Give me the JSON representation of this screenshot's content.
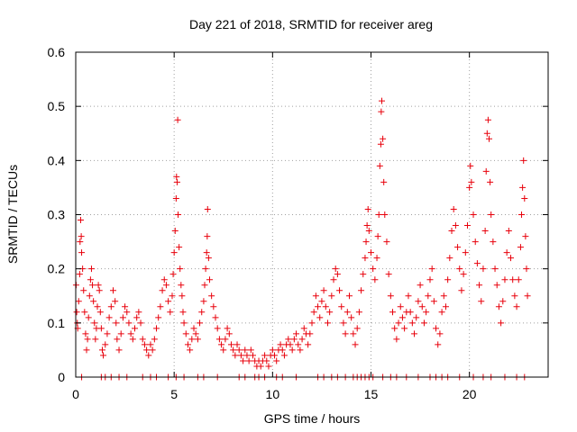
{
  "chart_data": {
    "type": "scatter",
    "title": "Day 221 of 2018, SRMTID for receiver areg",
    "xlabel": "GPS time / hours",
    "ylabel": "SRMTID / TECUs",
    "xlim": [
      0,
      24
    ],
    "ylim": [
      0,
      0.6
    ],
    "xticks": [
      0,
      5,
      10,
      15,
      20
    ],
    "yticks": [
      0,
      0.1,
      0.2,
      0.3,
      0.4,
      0.5,
      0.6
    ],
    "xtick_labels": [
      "0",
      "5",
      "10",
      "15",
      "20"
    ],
    "ytick_labels": [
      "0",
      "0.1",
      "0.2",
      "0.3",
      "0.4",
      "0.5",
      "0.6"
    ],
    "grid": true,
    "marker": "plus",
    "color": "#e8000b",
    "series": [
      {
        "name": "SRMTID",
        "points": [
          [
            0.02,
            0.17
          ],
          [
            0.05,
            0.12
          ],
          [
            0.08,
            0.1
          ],
          [
            0.1,
            0.09
          ],
          [
            0.15,
            0.14
          ],
          [
            0.2,
            0.19
          ],
          [
            0.22,
            0.25
          ],
          [
            0.25,
            0.29
          ],
          [
            0.28,
            0.26
          ],
          [
            0.3,
            0.23
          ],
          [
            0.35,
            0.2
          ],
          [
            0.4,
            0.16
          ],
          [
            0.45,
            0.12
          ],
          [
            0.5,
            0.08
          ],
          [
            0.55,
            0.05
          ],
          [
            0.6,
            0.07
          ],
          [
            0.65,
            0.11
          ],
          [
            0.7,
            0.15
          ],
          [
            0.75,
            0.18
          ],
          [
            0.8,
            0.2
          ],
          [
            0.85,
            0.17
          ],
          [
            0.9,
            0.14
          ],
          [
            0.95,
            0.1
          ],
          [
            1.0,
            0.07
          ],
          [
            1.05,
            0.09
          ],
          [
            1.1,
            0.13
          ],
          [
            1.15,
            0.17
          ],
          [
            1.2,
            0.16
          ],
          [
            1.25,
            0.12
          ],
          [
            1.3,
            0.09
          ],
          [
            1.35,
            0.05
          ],
          [
            1.4,
            0.04
          ],
          [
            1.5,
            0.06
          ],
          [
            1.6,
            0.08
          ],
          [
            1.7,
            0.11
          ],
          [
            1.8,
            0.13
          ],
          [
            1.9,
            0.16
          ],
          [
            2.0,
            0.14
          ],
          [
            2.05,
            0.1
          ],
          [
            2.1,
            0.07
          ],
          [
            2.2,
            0.05
          ],
          [
            2.3,
            0.08
          ],
          [
            2.4,
            0.11
          ],
          [
            2.5,
            0.13
          ],
          [
            2.6,
            0.12
          ],
          [
            2.7,
            0.1
          ],
          [
            2.8,
            0.08
          ],
          [
            2.9,
            0.07
          ],
          [
            3.0,
            0.09
          ],
          [
            3.1,
            0.11
          ],
          [
            3.2,
            0.12
          ],
          [
            3.3,
            0.1
          ],
          [
            3.4,
            0.07
          ],
          [
            3.5,
            0.06
          ],
          [
            3.6,
            0.05
          ],
          [
            3.7,
            0.04
          ],
          [
            3.8,
            0.06
          ],
          [
            3.9,
            0.05
          ],
          [
            4.0,
            0.07
          ],
          [
            4.1,
            0.09
          ],
          [
            4.2,
            0.11
          ],
          [
            4.3,
            0.13
          ],
          [
            4.4,
            0.16
          ],
          [
            4.5,
            0.18
          ],
          [
            4.6,
            0.17
          ],
          [
            4.7,
            0.14
          ],
          [
            4.8,
            0.12
          ],
          [
            4.9,
            0.15
          ],
          [
            4.95,
            0.19
          ],
          [
            5.0,
            0.23
          ],
          [
            5.05,
            0.27
          ],
          [
            5.1,
            0.33
          ],
          [
            5.12,
            0.37
          ],
          [
            5.15,
            0.36
          ],
          [
            5.18,
            0.475
          ],
          [
            5.2,
            0.3
          ],
          [
            5.25,
            0.24
          ],
          [
            5.3,
            0.2
          ],
          [
            5.35,
            0.17
          ],
          [
            5.4,
            0.15
          ],
          [
            5.45,
            0.12
          ],
          [
            5.5,
            0.1
          ],
          [
            5.6,
            0.08
          ],
          [
            5.7,
            0.06
          ],
          [
            5.8,
            0.05
          ],
          [
            5.9,
            0.07
          ],
          [
            6.0,
            0.09
          ],
          [
            6.1,
            0.08
          ],
          [
            6.2,
            0.07
          ],
          [
            6.3,
            0.1
          ],
          [
            6.4,
            0.12
          ],
          [
            6.5,
            0.14
          ],
          [
            6.55,
            0.17
          ],
          [
            6.6,
            0.2
          ],
          [
            6.65,
            0.23
          ],
          [
            6.68,
            0.26
          ],
          [
            6.7,
            0.31
          ],
          [
            6.75,
            0.22
          ],
          [
            6.8,
            0.18
          ],
          [
            6.9,
            0.15
          ],
          [
            7.0,
            0.13
          ],
          [
            7.1,
            0.11
          ],
          [
            7.2,
            0.09
          ],
          [
            7.3,
            0.07
          ],
          [
            7.4,
            0.06
          ],
          [
            7.5,
            0.05
          ],
          [
            7.6,
            0.07
          ],
          [
            7.7,
            0.09
          ],
          [
            7.8,
            0.08
          ],
          [
            7.9,
            0.06
          ],
          [
            8.0,
            0.05
          ],
          [
            8.1,
            0.04
          ],
          [
            8.2,
            0.06
          ],
          [
            8.3,
            0.05
          ],
          [
            8.4,
            0.04
          ],
          [
            8.5,
            0.03
          ],
          [
            8.6,
            0.05
          ],
          [
            8.7,
            0.04
          ],
          [
            8.8,
            0.03
          ],
          [
            8.9,
            0.05
          ],
          [
            9.0,
            0.04
          ],
          [
            9.1,
            0.03
          ],
          [
            9.2,
            0.02
          ],
          [
            9.3,
            0.03
          ],
          [
            9.4,
            0.02
          ],
          [
            9.5,
            0.03
          ],
          [
            9.6,
            0.04
          ],
          [
            9.7,
            0.03
          ],
          [
            9.8,
            0.02
          ],
          [
            9.9,
            0.04
          ],
          [
            10.0,
            0.05
          ],
          [
            10.1,
            0.04
          ],
          [
            10.2,
            0.03
          ],
          [
            10.3,
            0.05
          ],
          [
            10.4,
            0.06
          ],
          [
            10.5,
            0.05
          ],
          [
            10.6,
            0.04
          ],
          [
            10.7,
            0.06
          ],
          [
            10.8,
            0.07
          ],
          [
            10.9,
            0.06
          ],
          [
            11.0,
            0.05
          ],
          [
            11.1,
            0.07
          ],
          [
            11.2,
            0.08
          ],
          [
            11.3,
            0.06
          ],
          [
            11.4,
            0.05
          ],
          [
            11.5,
            0.07
          ],
          [
            11.6,
            0.09
          ],
          [
            11.7,
            0.08
          ],
          [
            11.8,
            0.06
          ],
          [
            11.9,
            0.08
          ],
          [
            12.0,
            0.1
          ],
          [
            12.1,
            0.12
          ],
          [
            12.2,
            0.15
          ],
          [
            12.3,
            0.13
          ],
          [
            12.4,
            0.11
          ],
          [
            12.5,
            0.14
          ],
          [
            12.6,
            0.16
          ],
          [
            12.7,
            0.13
          ],
          [
            12.8,
            0.1
          ],
          [
            12.9,
            0.12
          ],
          [
            13.0,
            0.15
          ],
          [
            13.1,
            0.18
          ],
          [
            13.2,
            0.2
          ],
          [
            13.3,
            0.19
          ],
          [
            13.4,
            0.16
          ],
          [
            13.5,
            0.13
          ],
          [
            13.6,
            0.1
          ],
          [
            13.7,
            0.08
          ],
          [
            13.8,
            0.12
          ],
          [
            13.9,
            0.15
          ],
          [
            14.0,
            0.11
          ],
          [
            14.1,
            0.08
          ],
          [
            14.2,
            0.06
          ],
          [
            14.3,
            0.09
          ],
          [
            14.4,
            0.12
          ],
          [
            14.5,
            0.16
          ],
          [
            14.6,
            0.19
          ],
          [
            14.7,
            0.22
          ],
          [
            14.75,
            0.25
          ],
          [
            14.8,
            0.28
          ],
          [
            14.85,
            0.31
          ],
          [
            14.9,
            0.27
          ],
          [
            15.0,
            0.23
          ],
          [
            15.1,
            0.2
          ],
          [
            15.2,
            0.18
          ],
          [
            15.3,
            0.22
          ],
          [
            15.35,
            0.26
          ],
          [
            15.4,
            0.3
          ],
          [
            15.45,
            0.39
          ],
          [
            15.5,
            0.43
          ],
          [
            15.52,
            0.49
          ],
          [
            15.55,
            0.51
          ],
          [
            15.6,
            0.44
          ],
          [
            15.65,
            0.36
          ],
          [
            15.7,
            0.3
          ],
          [
            15.8,
            0.25
          ],
          [
            15.9,
            0.19
          ],
          [
            16.0,
            0.15
          ],
          [
            16.1,
            0.12
          ],
          [
            16.2,
            0.09
          ],
          [
            16.3,
            0.07
          ],
          [
            16.4,
            0.1
          ],
          [
            16.5,
            0.13
          ],
          [
            16.6,
            0.11
          ],
          [
            16.7,
            0.09
          ],
          [
            16.8,
            0.12
          ],
          [
            16.9,
            0.15
          ],
          [
            17.0,
            0.12
          ],
          [
            17.1,
            0.1
          ],
          [
            17.2,
            0.08
          ],
          [
            17.3,
            0.11
          ],
          [
            17.4,
            0.14
          ],
          [
            17.5,
            0.17
          ],
          [
            17.6,
            0.13
          ],
          [
            17.7,
            0.1
          ],
          [
            17.8,
            0.12
          ],
          [
            17.9,
            0.15
          ],
          [
            18.0,
            0.18
          ],
          [
            18.1,
            0.2
          ],
          [
            18.2,
            0.14
          ],
          [
            18.3,
            0.09
          ],
          [
            18.4,
            0.06
          ],
          [
            18.5,
            0.08
          ],
          [
            18.6,
            0.12
          ],
          [
            18.7,
            0.15
          ],
          [
            18.8,
            0.13
          ],
          [
            18.9,
            0.18
          ],
          [
            19.0,
            0.22
          ],
          [
            19.1,
            0.27
          ],
          [
            19.2,
            0.31
          ],
          [
            19.3,
            0.28
          ],
          [
            19.4,
            0.24
          ],
          [
            19.5,
            0.2
          ],
          [
            19.6,
            0.16
          ],
          [
            19.7,
            0.19
          ],
          [
            19.8,
            0.23
          ],
          [
            19.9,
            0.28
          ],
          [
            20.0,
            0.35
          ],
          [
            20.05,
            0.39
          ],
          [
            20.1,
            0.36
          ],
          [
            20.2,
            0.3
          ],
          [
            20.3,
            0.25
          ],
          [
            20.4,
            0.21
          ],
          [
            20.5,
            0.17
          ],
          [
            20.6,
            0.14
          ],
          [
            20.7,
            0.2
          ],
          [
            20.8,
            0.27
          ],
          [
            20.85,
            0.38
          ],
          [
            20.9,
            0.45
          ],
          [
            20.95,
            0.475
          ],
          [
            21.0,
            0.44
          ],
          [
            21.05,
            0.36
          ],
          [
            21.1,
            0.3
          ],
          [
            21.2,
            0.25
          ],
          [
            21.3,
            0.2
          ],
          [
            21.4,
            0.17
          ],
          [
            21.5,
            0.13
          ],
          [
            21.6,
            0.1
          ],
          [
            21.7,
            0.14
          ],
          [
            21.8,
            0.18
          ],
          [
            21.9,
            0.23
          ],
          [
            22.0,
            0.27
          ],
          [
            22.1,
            0.22
          ],
          [
            22.2,
            0.18
          ],
          [
            22.3,
            0.15
          ],
          [
            22.4,
            0.13
          ],
          [
            22.5,
            0.18
          ],
          [
            22.6,
            0.24
          ],
          [
            22.65,
            0.3
          ],
          [
            22.7,
            0.35
          ],
          [
            22.75,
            0.4
          ],
          [
            22.8,
            0.33
          ],
          [
            22.85,
            0.26
          ],
          [
            22.9,
            0.2
          ],
          [
            22.95,
            0.15
          ],
          [
            0.3,
            0
          ],
          [
            1.3,
            0
          ],
          [
            1.5,
            0
          ],
          [
            1.8,
            0
          ],
          [
            2.2,
            0
          ],
          [
            2.6,
            0
          ],
          [
            3.4,
            0
          ],
          [
            3.8,
            0
          ],
          [
            4.1,
            0
          ],
          [
            4.7,
            0
          ],
          [
            5.1,
            0
          ],
          [
            5.5,
            0
          ],
          [
            6.2,
            0
          ],
          [
            6.5,
            0
          ],
          [
            7.2,
            0
          ],
          [
            8.3,
            0
          ],
          [
            8.6,
            0
          ],
          [
            9.1,
            0
          ],
          [
            9.3,
            0
          ],
          [
            9.6,
            0
          ],
          [
            10.2,
            0
          ],
          [
            10.5,
            0
          ],
          [
            11.2,
            0
          ],
          [
            12.3,
            0
          ],
          [
            12.6,
            0
          ],
          [
            13.0,
            0
          ],
          [
            13.3,
            0
          ],
          [
            13.7,
            0
          ],
          [
            14.1,
            0
          ],
          [
            14.3,
            0
          ],
          [
            14.5,
            0
          ],
          [
            14.7,
            0
          ],
          [
            14.9,
            0
          ],
          [
            15.1,
            0
          ],
          [
            15.6,
            0
          ],
          [
            16.0,
            0
          ],
          [
            16.3,
            0
          ],
          [
            16.8,
            0
          ],
          [
            17.4,
            0
          ],
          [
            18.0,
            0
          ],
          [
            18.3,
            0
          ],
          [
            18.6,
            0
          ],
          [
            18.9,
            0
          ],
          [
            19.5,
            0
          ],
          [
            20.2,
            0
          ],
          [
            20.7,
            0
          ],
          [
            21.1,
            0
          ],
          [
            21.8,
            0
          ],
          [
            22.4,
            0
          ],
          [
            22.8,
            0
          ]
        ]
      }
    ]
  }
}
